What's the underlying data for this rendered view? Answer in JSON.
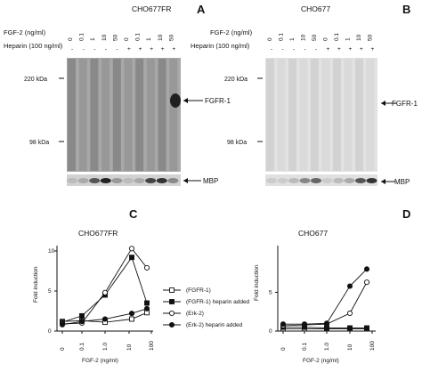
{
  "panels": {
    "A": {
      "letter": "A",
      "title": "CHO677FR",
      "row1_label": "FGF-2 (ng/ml)",
      "row2_label": "Heparin (100 ng/ml)",
      "fgf2_values": [
        "0",
        "0.1",
        "1",
        "10",
        "50",
        "0",
        "0.1",
        "1",
        "10",
        "50"
      ],
      "heparin_values": [
        "-",
        "-",
        "-",
        "-",
        "-",
        "+",
        "+",
        "+",
        "+",
        "+"
      ],
      "markers": [
        "220 kDa",
        "98 kDa"
      ],
      "band_label": "FGFR-1",
      "mbp_label": "MBP"
    },
    "B": {
      "letter": "B",
      "title": "CHO677",
      "row1_label": "FGF-2 (ng/ml)",
      "row2_label": "Heparin (100 ng/ml)",
      "fgf2_values": [
        "0",
        "0.1",
        "1",
        "10",
        "50",
        "0",
        "0.1",
        "1",
        "10",
        "50"
      ],
      "heparin_values": [
        "-",
        "-",
        "-",
        "-",
        "-",
        "+",
        "+",
        "+",
        "+",
        "+"
      ],
      "markers": [
        "220 kDa",
        "98 kDa"
      ],
      "band_label": "FGFR-1",
      "mbp_label": "MBP"
    }
  },
  "chart_data": [
    {
      "panel": "C",
      "type": "line",
      "title": "CHO677FR",
      "xlabel": "FGF-2 (ng/ml)",
      "ylabel": "Fold induction",
      "x_ticks": [
        "0",
        "0.1",
        "1.0",
        "10",
        "100"
      ],
      "y_ticks": [
        "0",
        "5",
        "10"
      ],
      "ylim": [
        0,
        10
      ],
      "x_scale": "log (0 shown at left)",
      "x": [
        0,
        0.1,
        1,
        10,
        50
      ],
      "legend_position": "right",
      "series": [
        {
          "name": "(FGFR-1)",
          "marker": "open-square",
          "values": [
            1.2,
            1.3,
            1.1,
            1.5,
            2.3
          ]
        },
        {
          "name": "(FGFR-1) heparin added",
          "marker": "filled-square",
          "values": [
            1.1,
            1.9,
            4.5,
            9.2,
            3.5
          ]
        },
        {
          "name": "(Erk-2)",
          "marker": "open-circle",
          "values": [
            0.9,
            1.0,
            4.8,
            10.3,
            7.9
          ]
        },
        {
          "name": "(Erk-2) heparin added",
          "marker": "filled-circle",
          "values": [
            0.8,
            1.2,
            1.5,
            2.2,
            2.8
          ]
        }
      ]
    },
    {
      "panel": "D",
      "type": "line",
      "title": "CHO677",
      "xlabel": "FGF-2 (ng/ml)",
      "ylabel": "Fold induction",
      "x_ticks": [
        "0",
        "0.1",
        "1.0",
        "10",
        "100"
      ],
      "y_ticks": [
        "0",
        "5"
      ],
      "ylim": [
        0,
        8.5
      ],
      "x_scale": "log (0 shown at left)",
      "x": [
        0,
        0.1,
        1,
        10,
        50
      ],
      "series": [
        {
          "name": "(FGFR-1)",
          "marker": "open-square",
          "values": [
            0.3,
            0.3,
            0.3,
            0.3,
            0.3
          ]
        },
        {
          "name": "(FGFR-1) heparin added",
          "marker": "filled-square",
          "values": [
            0.5,
            0.5,
            0.4,
            0.4,
            0.4
          ]
        },
        {
          "name": "(Erk-2)",
          "marker": "open-circle",
          "values": [
            0.7,
            0.8,
            0.9,
            2.3,
            6.3
          ]
        },
        {
          "name": "(Erk-2) heparin added",
          "marker": "filled-circle",
          "values": [
            0.9,
            0.9,
            1.0,
            5.8,
            8.0
          ]
        }
      ]
    }
  ]
}
